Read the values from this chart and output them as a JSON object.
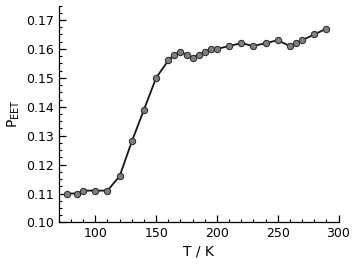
{
  "x": [
    77,
    85,
    90,
    100,
    110,
    120,
    130,
    140,
    150,
    160,
    165,
    170,
    175,
    180,
    185,
    190,
    195,
    200,
    210,
    220,
    230,
    240,
    250,
    260,
    265,
    270,
    280,
    290
  ],
  "y": [
    0.11,
    0.11,
    0.111,
    0.111,
    0.111,
    0.116,
    0.128,
    0.139,
    0.15,
    0.156,
    0.158,
    0.159,
    0.158,
    0.157,
    0.158,
    0.159,
    0.16,
    0.16,
    0.161,
    0.162,
    0.161,
    0.162,
    0.163,
    0.161,
    0.162,
    0.163,
    0.165,
    0.167
  ],
  "xlim": [
    70,
    300
  ],
  "ylim": [
    0.1,
    0.175
  ],
  "xticks": [
    100,
    150,
    200,
    250,
    300
  ],
  "yticks": [
    0.1,
    0.11,
    0.12,
    0.13,
    0.14,
    0.15,
    0.16,
    0.17
  ],
  "xlabel": "T / K",
  "ylabel": "P$_\\mathrm{EET}$",
  "marker_color": "#808080",
  "marker_edge_color": "#303030",
  "line_color": "#151515",
  "marker_size": 4.5,
  "line_width": 1.3,
  "background_color": "#ffffff",
  "figsize": [
    3.56,
    2.64
  ],
  "dpi": 100
}
